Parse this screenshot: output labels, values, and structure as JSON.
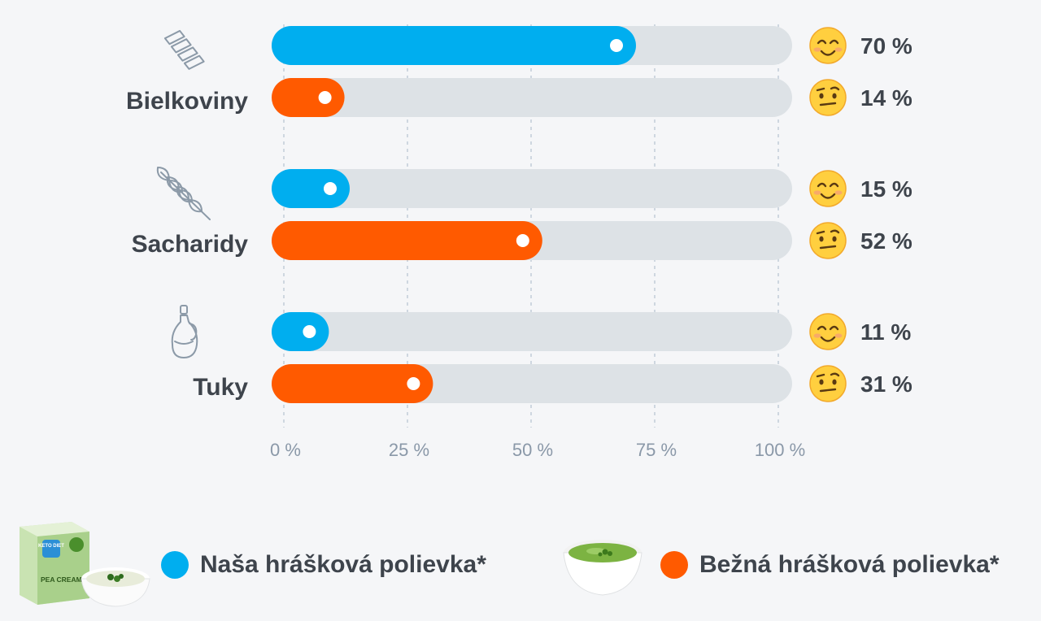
{
  "chart_data": {
    "type": "bar",
    "orientation": "horizontal",
    "categories": [
      "Bielkoviny",
      "Sacharidy",
      "Tuky"
    ],
    "category_icons": [
      "pasta-icon",
      "wheat-icon",
      "oil-bottle-icon"
    ],
    "series": [
      {
        "name": "Naša hrášková polievka*",
        "values": [
          70,
          15,
          11
        ],
        "value_labels": [
          "70 %",
          "15 %",
          "11 %"
        ],
        "color": "#00aeef",
        "indicator_icon": "smiling-face-icon"
      },
      {
        "name": "Bežná hrášková polievka*",
        "values": [
          14,
          52,
          31
        ],
        "value_labels": [
          "14 %",
          "52 %",
          "31 %"
        ],
        "color": "#ff5a00",
        "indicator_icon": "raised-eyebrow-face-icon"
      }
    ],
    "xlim": [
      0,
      100
    ],
    "x_ticks": [
      0,
      25,
      50,
      75,
      100
    ],
    "x_tick_labels": [
      "0 %",
      "25 %",
      "50 %",
      "75 %",
      "100 %"
    ],
    "grid": "vertical-dashed",
    "legend_position": "bottom",
    "track_color": "#dde2e6"
  },
  "legend": {
    "ours": {
      "label": "Naša hrášková polievka*",
      "color": "#00aeef",
      "image": "pea-cream-package-with-bowl"
    },
    "regular": {
      "label": "Bežná hrášková polievka*",
      "color": "#ff5a00",
      "image": "bowl-of-pea-soup"
    }
  },
  "product_box": {
    "brand": "KETO DIET",
    "name": "PEA CREAM"
  }
}
